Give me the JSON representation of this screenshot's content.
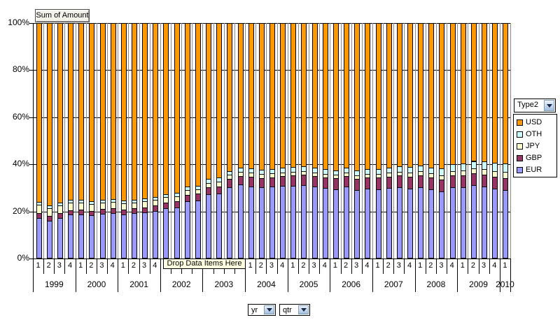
{
  "buttons": {
    "data_field": "Sum of Amount",
    "legend_field": "Type2",
    "axis_fields": [
      "yr",
      "qtr"
    ],
    "drop_zone": "Drop Data Items Here"
  },
  "legend": {
    "items": [
      {
        "label": "USD",
        "color": "#FF9900"
      },
      {
        "label": "OTH",
        "color": "#CCFFFF"
      },
      {
        "label": "JPY",
        "color": "#FFFFCC"
      },
      {
        "label": "GBP",
        "color": "#993366"
      },
      {
        "label": "EUR",
        "color": "#9999FF"
      }
    ]
  },
  "chart_data": {
    "type": "bar",
    "stacking": "percent_100",
    "title": "Sum of Amount",
    "ylim": [
      0,
      100
    ],
    "y_ticks": [
      "0%",
      "20%",
      "40%",
      "60%",
      "80%",
      "100%"
    ],
    "grid": {
      "horizontal": "black",
      "vertical_category": "gray"
    },
    "legend_position": "right",
    "x_axis": {
      "fields": [
        "yr",
        "qtr"
      ],
      "years": [
        {
          "label": "1999",
          "quarters": [
            "1",
            "2",
            "3",
            "4"
          ]
        },
        {
          "label": "2000",
          "quarters": [
            "1",
            "2",
            "3",
            "4"
          ]
        },
        {
          "label": "2001",
          "quarters": [
            "1",
            "2",
            "3",
            "4"
          ]
        },
        {
          "label": "2002",
          "quarters": [
            "1",
            "2",
            "3",
            "4"
          ]
        },
        {
          "label": "2003",
          "quarters": [
            "1",
            "2",
            "3",
            "4"
          ]
        },
        {
          "label": "2004",
          "quarters": [
            "1",
            "2",
            "3",
            "4"
          ]
        },
        {
          "label": "2005",
          "quarters": [
            "1",
            "2",
            "3",
            "4"
          ]
        },
        {
          "label": "2006",
          "quarters": [
            "1",
            "2",
            "3",
            "4"
          ]
        },
        {
          "label": "2007",
          "quarters": [
            "1",
            "2",
            "3",
            "4"
          ]
        },
        {
          "label": "2008",
          "quarters": [
            "1",
            "2",
            "3",
            "4"
          ]
        },
        {
          "label": "2009",
          "quarters": [
            "1",
            "2",
            "3",
            "4"
          ]
        },
        {
          "label": "2010",
          "quarters": [
            "1"
          ]
        }
      ]
    },
    "series": [
      {
        "name": "EUR",
        "color": "#9999FF",
        "values": [
          17.3,
          16.0,
          17.3,
          18.6,
          18.8,
          18.3,
          19.0,
          19.3,
          18.8,
          19.3,
          19.6,
          20.3,
          21.3,
          21.8,
          24.2,
          24.7,
          27.2,
          27.5,
          30.2,
          31.5,
          30.7,
          30.2,
          30.5,
          30.8,
          30.9,
          31.2,
          30.5,
          30.0,
          29.5,
          30.5,
          29.2,
          29.8,
          29.5,
          30.0,
          30.3,
          29.7,
          30.2,
          29.3,
          28.4,
          30.2,
          30.4,
          31.2,
          30.7,
          29.7,
          29.2
        ]
      },
      {
        "name": "GBP",
        "color": "#993366",
        "values": [
          2.0,
          2.0,
          2.0,
          2.0,
          2.0,
          2.0,
          2.0,
          2.0,
          2.0,
          2.0,
          2.2,
          2.2,
          2.5,
          2.5,
          2.8,
          2.8,
          3.0,
          3.2,
          3.5,
          3.5,
          4.0,
          4.0,
          4.0,
          4.2,
          4.5,
          4.5,
          4.5,
          4.5,
          4.5,
          4.5,
          4.5,
          4.5,
          4.8,
          4.8,
          5.0,
          5.0,
          5.0,
          5.0,
          5.0,
          5.0,
          5.0,
          5.0,
          5.0,
          5.0,
          5.0
        ]
      },
      {
        "name": "JPY",
        "color": "#FFFFCC",
        "values": [
          3.5,
          3.5,
          3.2,
          3.0,
          2.8,
          2.8,
          2.6,
          2.6,
          2.6,
          2.5,
          2.5,
          2.4,
          2.2,
          2.2,
          2.2,
          2.0,
          2.0,
          2.0,
          1.8,
          1.8,
          1.8,
          1.6,
          1.6,
          1.6,
          1.5,
          1.5,
          1.5,
          1.5,
          1.5,
          1.5,
          1.5,
          1.5,
          1.5,
          1.6,
          1.6,
          1.8,
          1.8,
          1.8,
          2.0,
          2.0,
          2.0,
          2.0,
          2.2,
          2.4,
          2.5
        ]
      },
      {
        "name": "OTH",
        "color": "#CCFFFF",
        "values": [
          1.2,
          1.2,
          1.2,
          1.2,
          1.2,
          1.2,
          1.2,
          1.2,
          1.2,
          1.2,
          1.2,
          1.3,
          1.3,
          1.4,
          1.5,
          1.5,
          1.5,
          1.6,
          1.6,
          1.7,
          1.8,
          1.8,
          1.9,
          2.0,
          2.0,
          2.0,
          2.0,
          2.0,
          2.0,
          2.0,
          2.1,
          2.1,
          2.2,
          2.2,
          2.3,
          2.4,
          2.5,
          2.6,
          2.8,
          3.0,
          3.0,
          3.2,
          3.4,
          3.5,
          3.8
        ]
      },
      {
        "name": "USD",
        "color": "#FF9900",
        "values": [
          76.0,
          77.3,
          76.3,
          75.2,
          75.2,
          75.7,
          75.2,
          74.9,
          75.4,
          75.0,
          74.5,
          73.8,
          72.7,
          72.1,
          69.3,
          69.0,
          66.3,
          65.7,
          62.9,
          61.5,
          61.7,
          62.4,
          62.0,
          61.4,
          61.1,
          60.8,
          61.5,
          62.0,
          62.5,
          61.5,
          62.7,
          62.1,
          62.0,
          61.4,
          60.8,
          61.1,
          60.5,
          61.3,
          61.8,
          59.8,
          59.6,
          58.6,
          58.7,
          59.4,
          59.5
        ]
      }
    ]
  }
}
